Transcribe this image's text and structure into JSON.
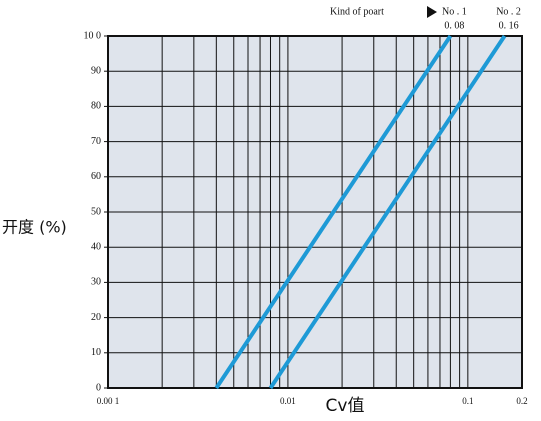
{
  "chart_data": {
    "type": "line",
    "xlabel": "Cv值",
    "ylabel": "开度 (%)",
    "legend_title": "Kind of poart",
    "xscale": "log",
    "xlim": [
      0.001,
      0.2
    ],
    "ylim": [
      0,
      100
    ],
    "xticks": [
      {
        "value": 0.001,
        "label": "0.00 1"
      },
      0.01,
      0.1,
      0.2
    ],
    "yticks": [
      0,
      10,
      20,
      30,
      40,
      50,
      60,
      70,
      80,
      90,
      {
        "value": 100,
        "label": "10 0"
      }
    ],
    "x_minor_gridlines": [
      0.002,
      0.003,
      0.004,
      0.005,
      0.006,
      0.007,
      0.008,
      0.009,
      0.02,
      0.03,
      0.04,
      0.05,
      0.06,
      0.07,
      0.08,
      0.09
    ],
    "grid": true,
    "series": [
      {
        "name": "No . 1",
        "color": "#1e9ad6",
        "x": [
          0.004,
          0.08
        ],
        "values": [
          0,
          100
        ],
        "x_labels": [
          null,
          "0. 08"
        ]
      },
      {
        "name": "No . 2",
        "color": "#1e9ad6",
        "x": [
          0.008,
          0.16
        ],
        "values": [
          0,
          100
        ],
        "x_labels": [
          null,
          "0. 16"
        ]
      }
    ]
  }
}
